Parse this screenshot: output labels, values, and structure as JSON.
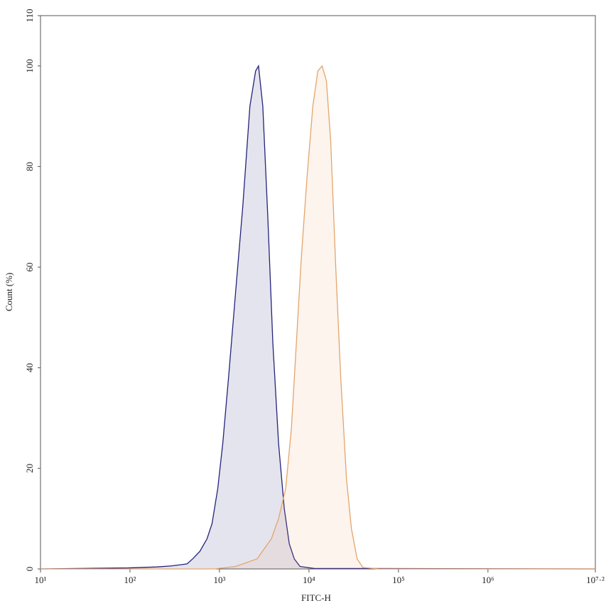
{
  "chart_data": {
    "type": "area",
    "xlabel": "FITC-H",
    "ylabel": "Count (%)",
    "xscale": "log",
    "xlim": [
      10,
      15848931.924611142
    ],
    "ylim": [
      0,
      110
    ],
    "xticks": [
      {
        "value": 10,
        "label": "10¹"
      },
      {
        "value": 100,
        "label": "10²"
      },
      {
        "value": 1000,
        "label": "10³"
      },
      {
        "value": 10000,
        "label": "10⁴"
      },
      {
        "value": 100000,
        "label": "10⁵"
      },
      {
        "value": 1000000,
        "label": "10⁶"
      },
      {
        "value": 15848931.924611142,
        "label": "10⁷·²"
      }
    ],
    "yticks": [
      0,
      20,
      40,
      60,
      80,
      100,
      110
    ],
    "series": [
      {
        "color": "#23237a",
        "x": [
          10,
          96,
          200,
          290,
          434,
          502,
          604,
          726,
          826,
          957,
          1089,
          1262,
          1514,
          1820,
          2188,
          2535,
          2730,
          3048,
          3467,
          3945,
          4571,
          5297,
          6026,
          6855,
          7943,
          11460,
          15848931.924611142
        ],
        "values": [
          0,
          0.2,
          0.4,
          0.6,
          1,
          2,
          3.5,
          6,
          9,
          16,
          25,
          38,
          55,
          72,
          92,
          99,
          100,
          92,
          70,
          45,
          25,
          12,
          5,
          2,
          0.5,
          0.1,
          0
        ]
      },
      {
        "color": "#e3a56c",
        "x": [
          10,
          873,
          1517,
          2630,
          3162,
          3802,
          4571,
          5495,
          6368,
          7236,
          8222,
          9527,
          11040,
          12560,
          14030,
          15670,
          17500,
          19910,
          22650,
          26240,
          29810,
          34540,
          40000,
          59980,
          15848931.924611142
        ],
        "values": [
          0,
          0,
          0.5,
          2,
          4,
          6,
          10,
          16,
          28,
          45,
          62,
          78,
          92,
          99,
          100,
          97,
          85,
          60,
          38,
          18,
          8,
          2,
          0.3,
          0,
          0
        ]
      }
    ]
  }
}
